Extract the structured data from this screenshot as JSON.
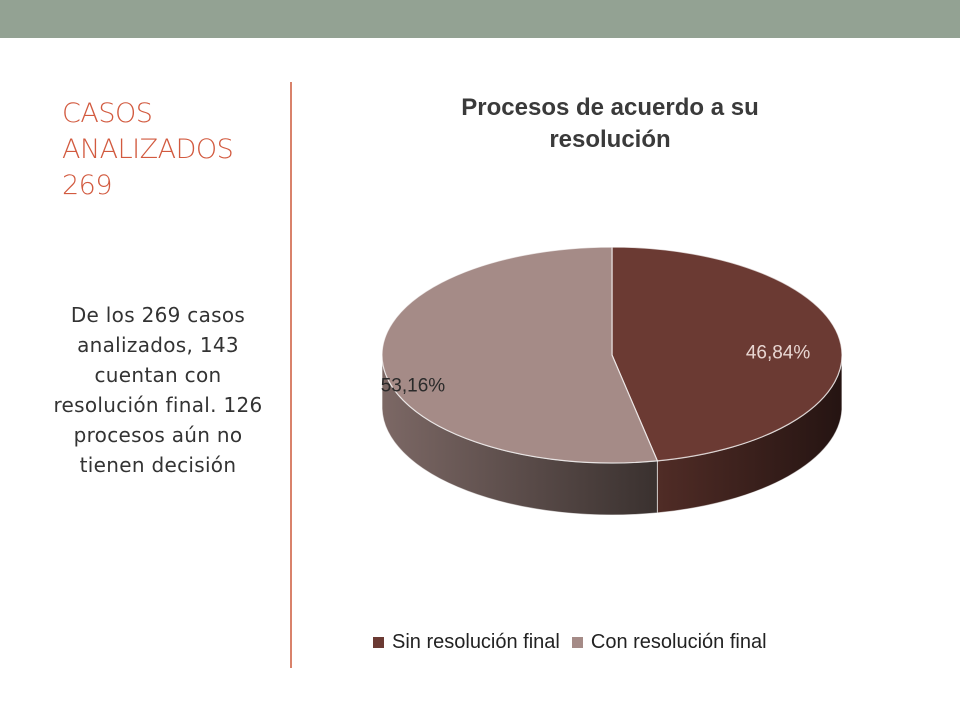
{
  "slide": {
    "title_lines": [
      "CASOS",
      "ANALIZADOS",
      "269"
    ],
    "body": "De los 269 casos analizados, 143 cuentan con resolución final. 126 procesos aún no tienen decisión"
  },
  "colors": {
    "topbar": "#93a293",
    "title": "#d25a3f",
    "divider": "#d9826b"
  },
  "chart_data": {
    "type": "pie",
    "title_lines": [
      "Procesos de acuerdo a su",
      "resolución"
    ],
    "three_d": true,
    "slices": [
      {
        "label": "Sin resolución final",
        "value": 46.84,
        "display": "46,84%",
        "color": "#6b3a33"
      },
      {
        "label": "Con resolución final",
        "value": 53.16,
        "display": "53,16%",
        "color": "#a58b87"
      }
    ],
    "legend_position": "bottom"
  }
}
